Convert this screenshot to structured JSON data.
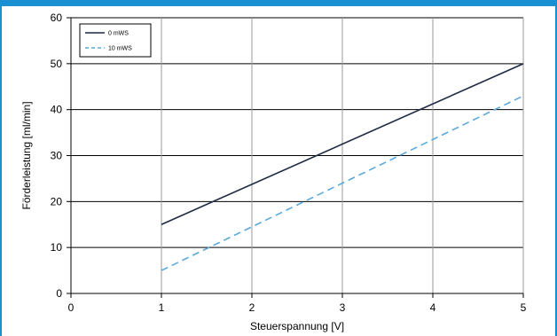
{
  "chart_data": {
    "type": "line",
    "title": "",
    "xlabel": "Steuerspannung [V]",
    "ylabel": "Förderleistung [ml/min]",
    "xlim": [
      0,
      5
    ],
    "ylim": [
      0,
      60
    ],
    "xticks": [
      0,
      1,
      2,
      3,
      4,
      5
    ],
    "yticks": [
      0,
      10,
      20,
      30,
      40,
      50,
      60
    ],
    "grid": true,
    "legend_position": "top-left",
    "series": [
      {
        "name": "0 mWS",
        "color": "#1f2a44",
        "style": "solid",
        "x": [
          1,
          5
        ],
        "y": [
          15,
          50
        ]
      },
      {
        "name": "10 mWS",
        "color": "#5aa9dc",
        "style": "dashed",
        "x": [
          1,
          5
        ],
        "y": [
          5,
          43
        ]
      }
    ]
  }
}
